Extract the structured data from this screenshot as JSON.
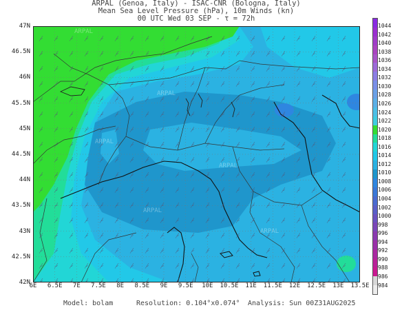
{
  "header": {
    "line1": "ARPAL (Genoa, Italy)  -  ISAC-CNR (Bologna, Italy)",
    "line2": "Mean Sea Level Pressure (hPa), 10m Winds (kn)",
    "line3": "00 UTC Wed 03 SEP  -  τ = 72h"
  },
  "map": {
    "lat_labels": [
      "47N",
      "46.5N",
      "46N",
      "45.5N",
      "45N",
      "44.5N",
      "44N",
      "43.5N",
      "43N",
      "42.5N",
      "42N"
    ],
    "lon_labels": [
      "6E",
      "6.5E",
      "7E",
      "7.5E",
      "8E",
      "8.5E",
      "9E",
      "9.5E",
      "10E",
      "10.5E",
      "11E",
      "11.5E",
      "12E",
      "12.5E",
      "13E",
      "13.5E"
    ],
    "colors": {
      "c1020": "#33dd33",
      "c1018": "#22dd99",
      "c1016": "#22d6d6",
      "c1014": "#22c8e8",
      "c1012": "#2bb2e2",
      "c1010": "#1f96cc",
      "c1008": "#2f86e0",
      "coast": "#111111",
      "border": "#333333"
    },
    "watermark": "ARPAL"
  },
  "colorbar": {
    "labels": [
      "1044",
      "1042",
      "1040",
      "1038",
      "1036",
      "1034",
      "1032",
      "1030",
      "1028",
      "1026",
      "1024",
      "1022",
      "1020",
      "1018",
      "1016",
      "1014",
      "1012",
      "1010",
      "1008",
      "1006",
      "1004",
      "1002",
      "1000",
      "998",
      "996",
      "994",
      "992",
      "990",
      "988",
      "986",
      "984"
    ],
    "colors": [
      "#8a2be2",
      "#9b30d0",
      "#a03cc8",
      "#aa44c0",
      "#a855c8",
      "#9d6ad8",
      "#8b7de4",
      "#7a8fe8",
      "#6aa0e6",
      "#5cb0e6",
      "#4dbfe6",
      "#40cce0",
      "#33dd33",
      "#22dd99",
      "#22d6d6",
      "#22c8e8",
      "#2bb2e2",
      "#1f96cc",
      "#2f86e0",
      "#3a78d8",
      "#4a6bd0",
      "#5a5fc8",
      "#6a52c0",
      "#7a46b8",
      "#8a3ab0",
      "#9a30a8",
      "#aa28a0",
      "#ba2098",
      "#ca1890",
      "#d8d8d8",
      "#ececec"
    ]
  },
  "footer": {
    "model": "Model: bolam",
    "resolution": "Resolution: 0.104°x0.074°",
    "analysis": "Analysis: Sun 00Z31AUG2025"
  }
}
